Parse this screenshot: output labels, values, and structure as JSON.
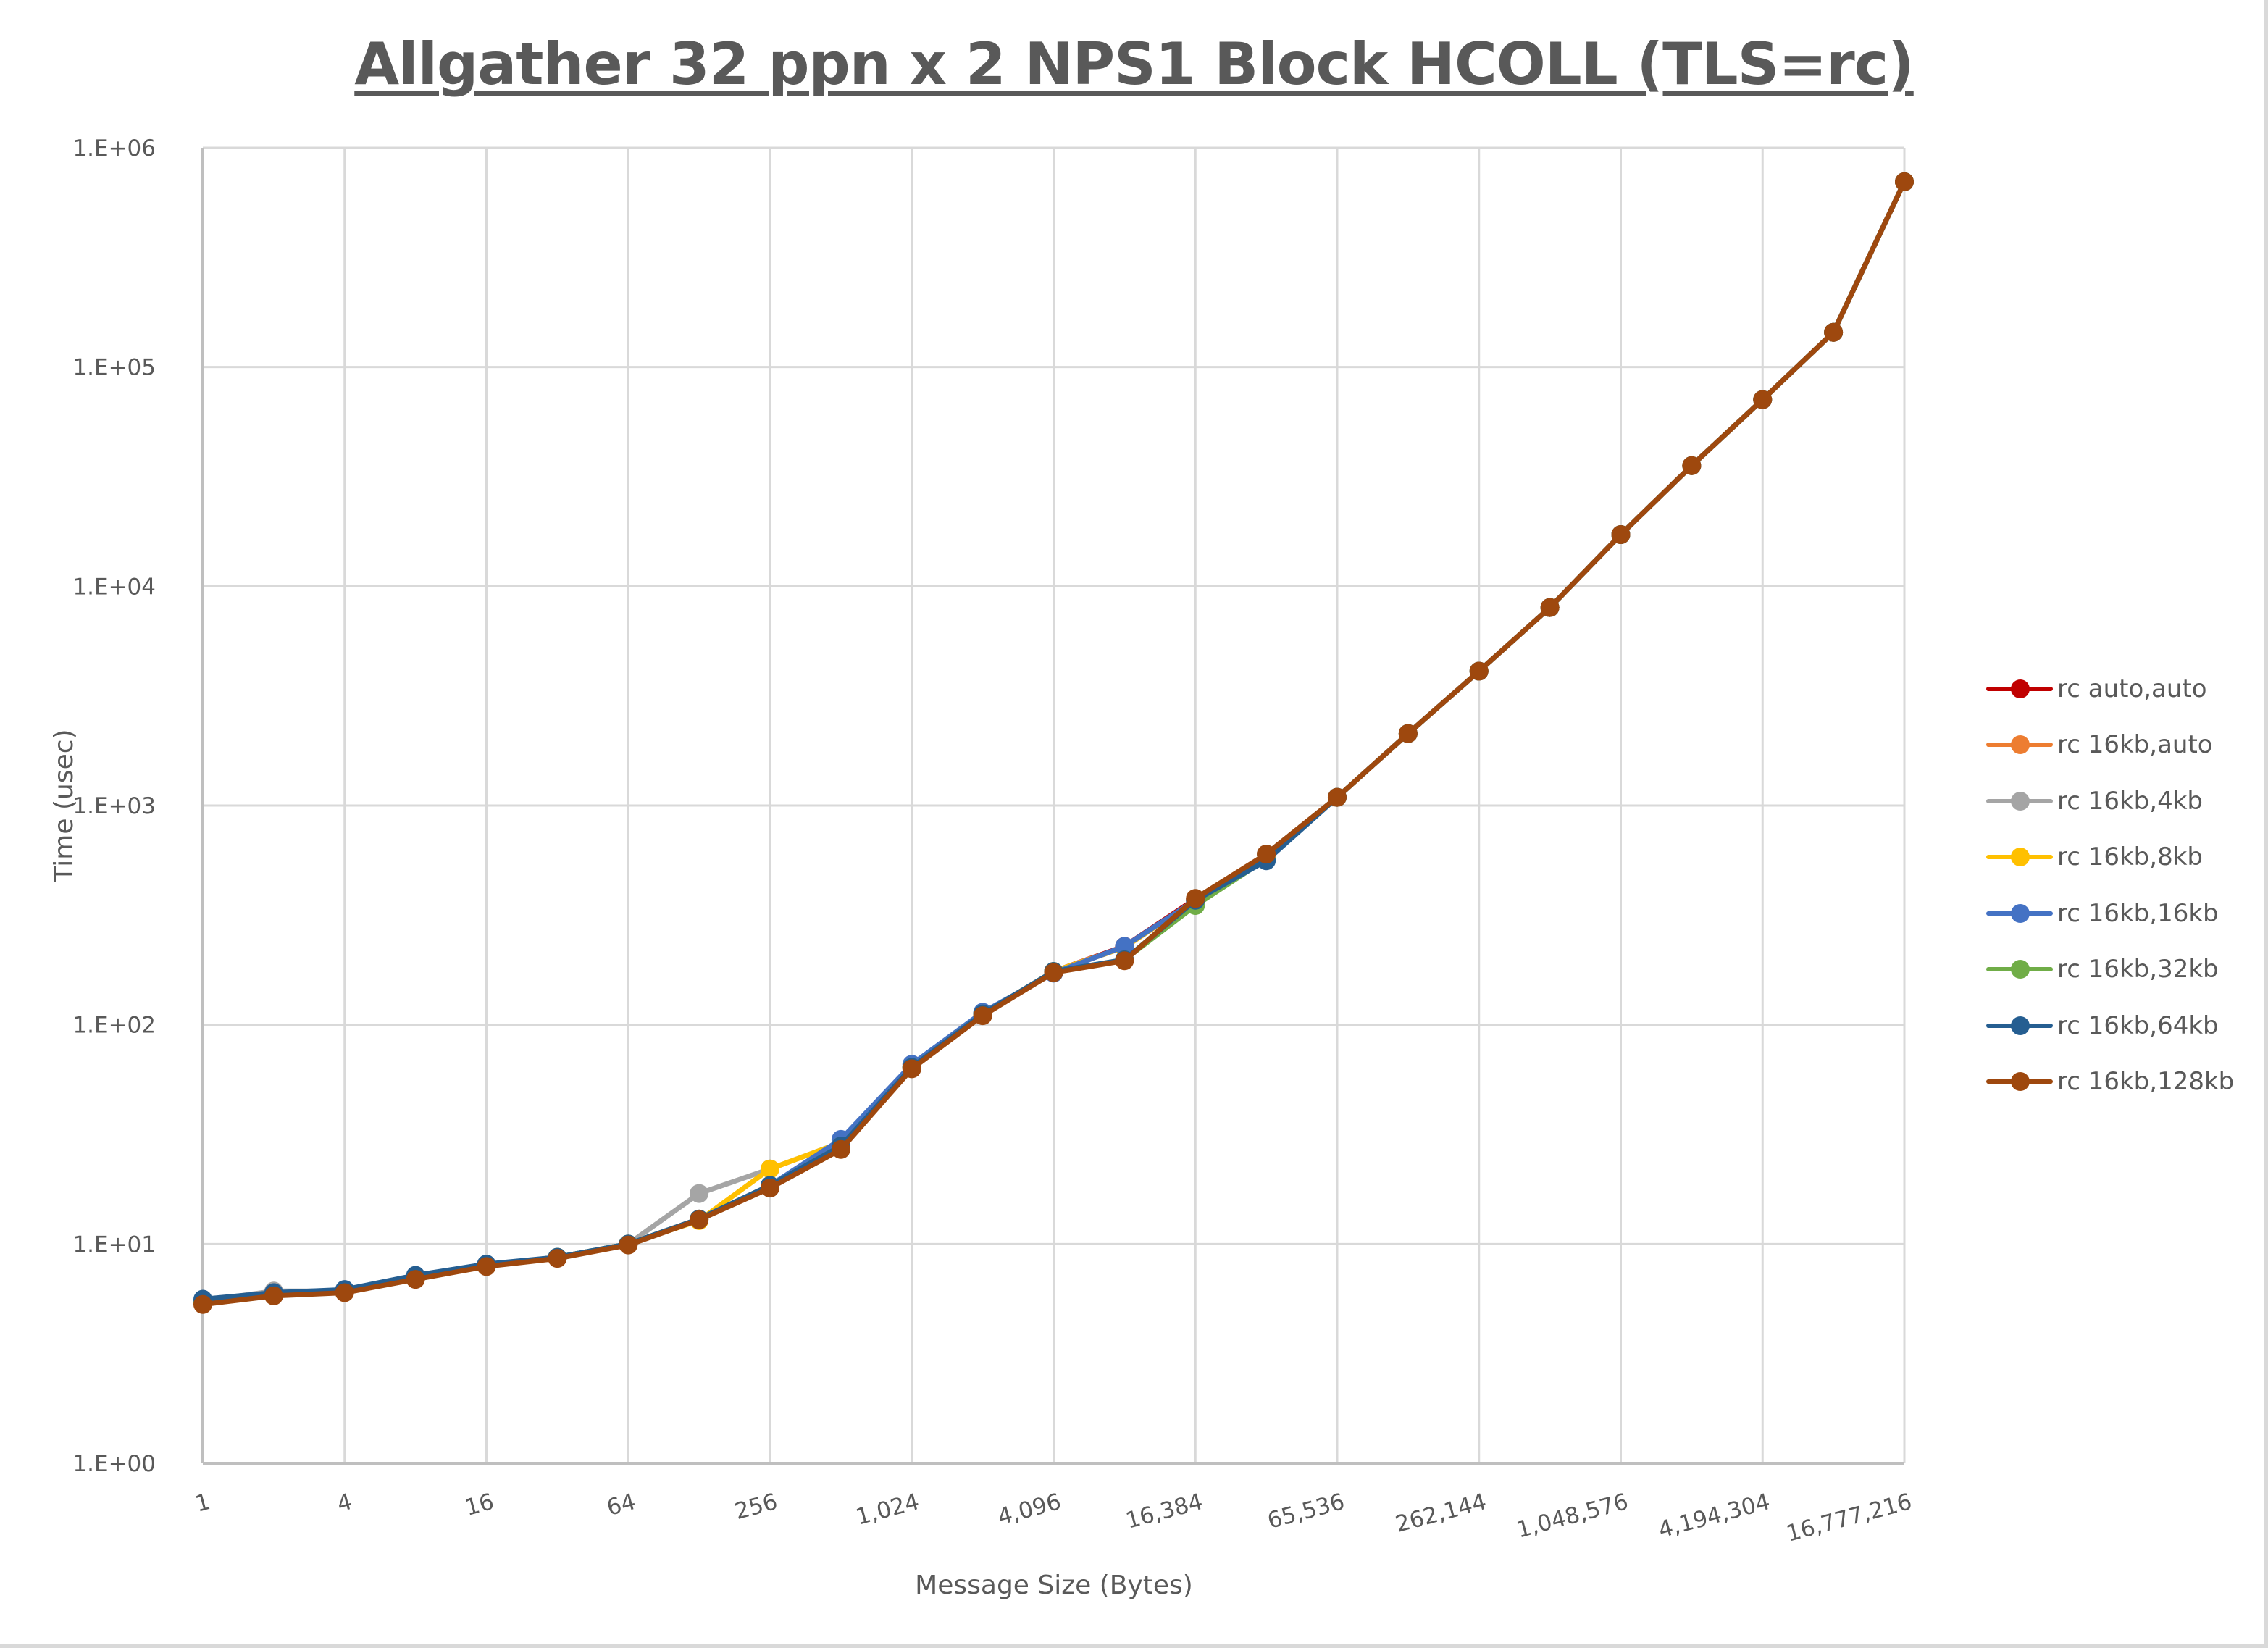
{
  "chart_data": {
    "type": "line",
    "title": "Allgather 32 ppn x 2 NPS1 Block HCOLL (TLS=rc)",
    "xlabel": "Message Size (Bytes)",
    "ylabel": "Time (usec)",
    "yscale": "log",
    "ylim": [
      1,
      1000000
    ],
    "y_ticks": [
      "1.E+00",
      "1.E+01",
      "1.E+02",
      "1.E+03",
      "1.E+04",
      "1.E+05",
      "1.E+06"
    ],
    "x_tick_labels": [
      "1",
      "4",
      "16",
      "64",
      "256",
      "1,024",
      "4,096",
      "16,384",
      "65,536",
      "262,144",
      "1,048,576",
      "4,194,304",
      "16,777,216"
    ],
    "grid": true,
    "legend_position": "right",
    "x": [
      1,
      2,
      4,
      8,
      16,
      32,
      64,
      128,
      256,
      512,
      1024,
      2048,
      4096,
      8192,
      16384,
      32768,
      65536,
      131072,
      262144,
      524288,
      1048576,
      2097152,
      4194304,
      8388608,
      16777216
    ],
    "series": [
      {
        "name": "rc auto,auto",
        "color": "#c00000",
        "values": [
          5.4,
          5.9,
          6.1,
          7.0,
          8.0,
          8.7,
          10.0,
          13.0,
          18.5,
          28,
          64,
          112,
          175,
          228,
          375,
          600,
          1090,
          2130,
          4100,
          8000,
          17200,
          35500,
          71000,
          144000,
          700000
        ]
      },
      {
        "name": "rc 16kb,auto",
        "color": "#ed7d31",
        "values": [
          5.4,
          5.9,
          6.1,
          7.0,
          8.0,
          8.7,
          10.0,
          13.0,
          18.5,
          28,
          64,
          112,
          175,
          226,
          370,
          600,
          1090,
          2130,
          4100,
          8000,
          17200,
          35500,
          71000,
          144000,
          700000
        ]
      },
      {
        "name": "rc 16kb,4kb",
        "color": "#a5a5a5",
        "values": [
          5.5,
          6.1,
          6.1,
          7.0,
          8.0,
          8.7,
          10.0,
          17.0,
          22,
          29,
          64,
          112,
          175,
          226,
          370,
          600,
          1090,
          2130,
          4100,
          8000,
          17200,
          35500,
          71000,
          144000,
          700000
        ]
      },
      {
        "name": "rc 16kb,8kb",
        "color": "#ffc000",
        "values": [
          5.4,
          5.9,
          6.1,
          7.0,
          8.0,
          8.7,
          10.0,
          12.8,
          22,
          29,
          64,
          112,
          175,
          226,
          370,
          600,
          1090,
          2130,
          4100,
          8000,
          17200,
          35500,
          71000,
          144000,
          700000
        ]
      },
      {
        "name": "rc 16kb,16kb",
        "color": "#4472c4",
        "values": [
          5.5,
          6.0,
          6.1,
          7.1,
          8.0,
          8.7,
          10.0,
          13.0,
          18.5,
          30,
          66,
          114,
          172,
          228,
          370,
          600,
          1090,
          2130,
          4100,
          8000,
          17200,
          35500,
          71000,
          144000,
          700000
        ]
      },
      {
        "name": "rc 16kb,32kb",
        "color": "#70ad47",
        "values": [
          5.4,
          5.9,
          6.1,
          7.0,
          8.0,
          8.7,
          10.0,
          13.0,
          18.5,
          28,
          64,
          112,
          175,
          198,
          350,
          570,
          1090,
          2130,
          4100,
          8000,
          17200,
          35500,
          71000,
          144000,
          700000
        ]
      },
      {
        "name": "rc 16kb,64kb",
        "color": "#255e91",
        "values": [
          5.6,
          6.0,
          6.2,
          7.2,
          8.1,
          8.7,
          10.0,
          13.0,
          18.5,
          28,
          64,
          112,
          175,
          198,
          370,
          560,
          1090,
          2130,
          4100,
          8000,
          17200,
          35500,
          71000,
          144000,
          700000
        ]
      },
      {
        "name": "rc 16kb,128kb",
        "color": "#9e480e",
        "values": [
          5.3,
          5.8,
          6.0,
          6.9,
          7.9,
          8.6,
          9.9,
          12.9,
          18,
          27,
          63,
          110,
          173,
          196,
          377,
          600,
          1090,
          2130,
          4100,
          8000,
          17200,
          35500,
          71000,
          144000,
          700000
        ]
      }
    ]
  },
  "colors": {
    "gridline": "#d9d9d9",
    "axis": "#bfbfbf",
    "text": "#595959"
  }
}
